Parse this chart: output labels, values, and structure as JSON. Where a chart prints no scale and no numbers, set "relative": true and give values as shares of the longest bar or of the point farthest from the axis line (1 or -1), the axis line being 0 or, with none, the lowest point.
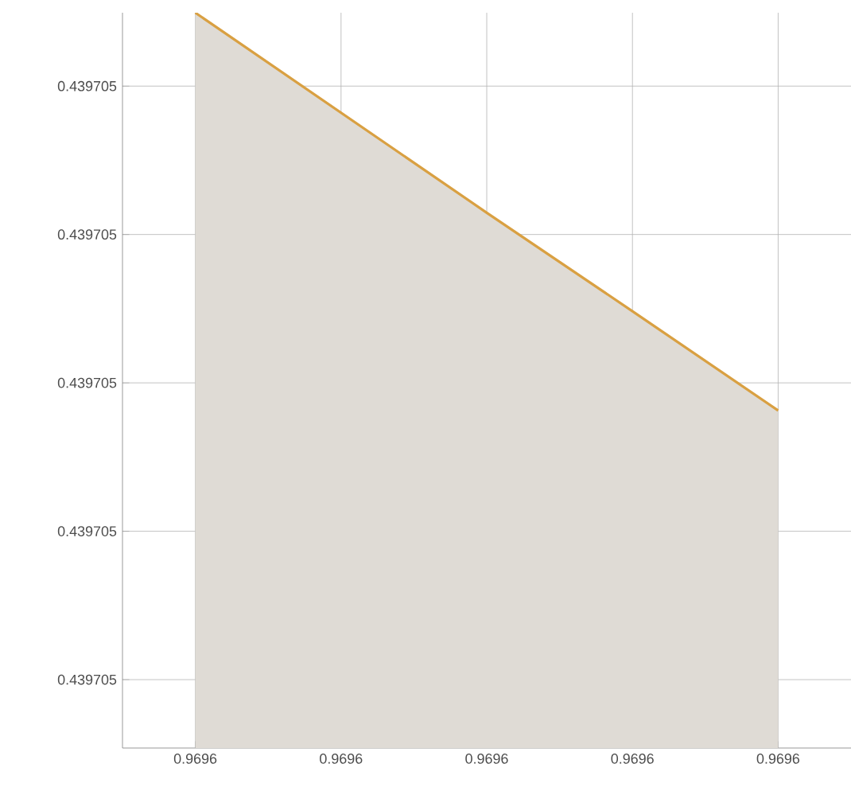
{
  "chart_data": {
    "type": "area",
    "relative": true,
    "categories": [
      "0.9696",
      "0.9696",
      "0.9696",
      "0.9696",
      "0.9696"
    ],
    "series": [
      {
        "color": "#d9a042",
        "values": [
          1,
          0.864,
          0.728,
          0.594,
          0.459
        ]
      }
    ],
    "annotations": [
      "0.439705",
      "0.439705",
      "0.439705",
      "0.439705",
      "0.439705"
    ],
    "grid": true
  }
}
